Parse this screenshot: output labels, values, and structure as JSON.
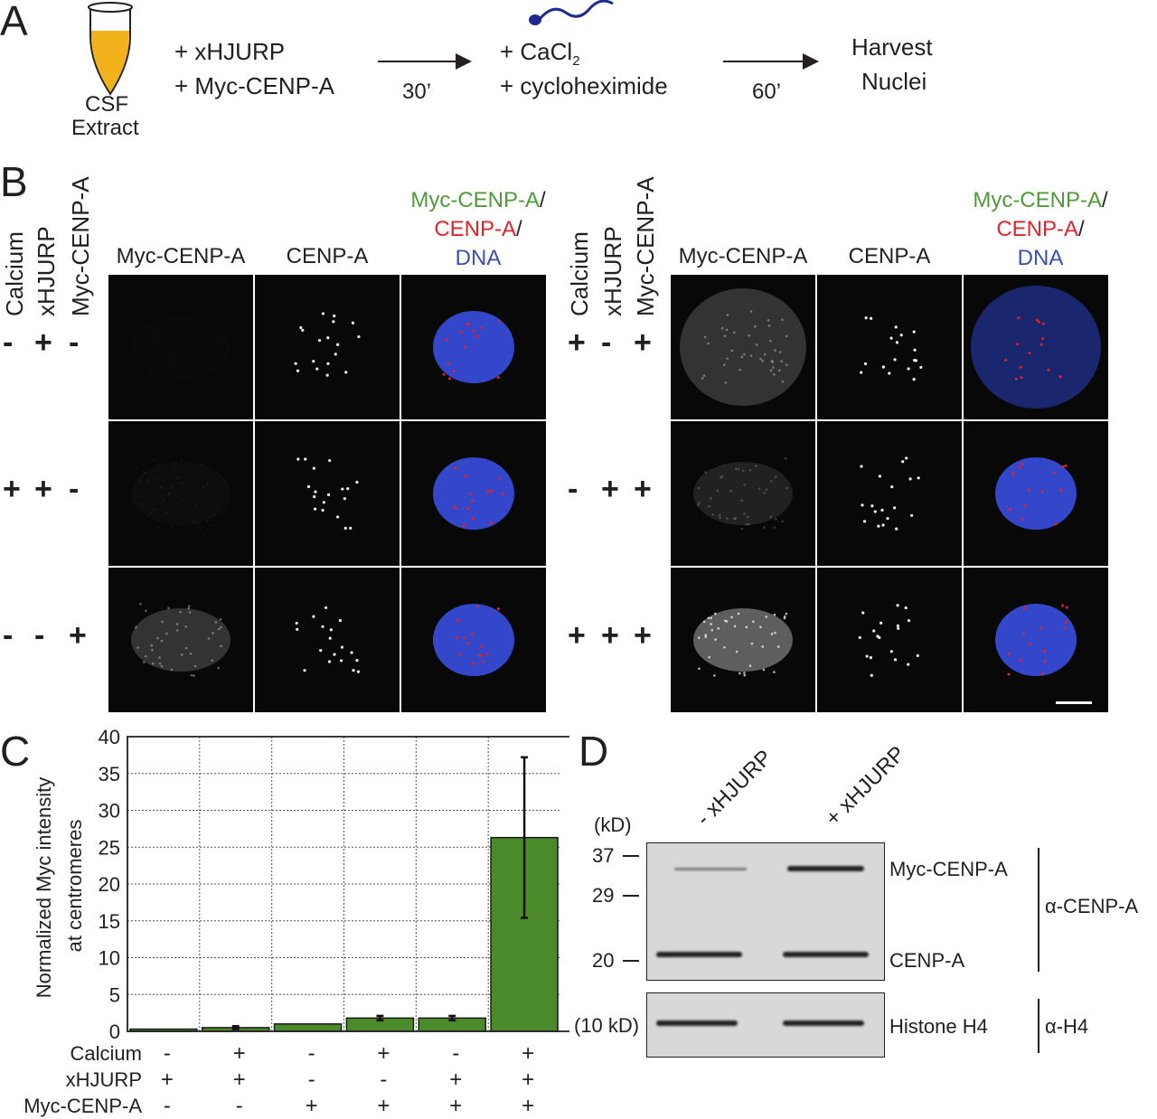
{
  "panel_letters": [
    "A",
    "B",
    "C",
    "D"
  ],
  "panel_a": {
    "tube_label": [
      "CSF",
      "Extract"
    ],
    "step1": [
      "+ xHJURP",
      "+ Myc-CENP-A"
    ],
    "time1": "30’",
    "step2_line1": "+ CaCl",
    "step2_sub": "2",
    "step2_line2": "+ cycloheximide",
    "time2": "60’",
    "result": [
      "Harvest",
      "Nuclei"
    ]
  },
  "panel_b": {
    "condition_labels": [
      "Calcium",
      "xHJURP",
      "Myc-CENP-A"
    ],
    "column_headers": [
      "Myc-CENP-A",
      "CENP-A"
    ],
    "merge_header": [
      {
        "text": "Myc-CENP-A",
        "color": "#4f9a3a"
      },
      {
        "text": "CENP-A",
        "color": "#e0242b"
      },
      {
        "text": "DNA",
        "color": "#3a4fb5"
      }
    ],
    "left_rows": [
      [
        "-",
        "+",
        "-"
      ],
      [
        "+",
        "+",
        "-"
      ],
      [
        "-",
        "-",
        "+"
      ]
    ],
    "right_rows": [
      [
        "+",
        "-",
        "+"
      ],
      [
        "-",
        "+",
        "+"
      ],
      [
        "+",
        "+",
        "+"
      ]
    ]
  },
  "panel_c": {
    "ylabel": [
      "Normalized Myc intensity",
      "at centromeres"
    ]
  },
  "chart_data": {
    "type": "bar",
    "ylabel": "Normalized Myc intensity at centromeres",
    "ylim": [
      0,
      40
    ],
    "yticks": [
      0,
      5,
      10,
      15,
      20,
      25,
      30,
      35,
      40
    ],
    "grid": true,
    "bar_color": "#4a8a2a",
    "condition_rows": [
      {
        "name": "Calcium",
        "values": [
          "-",
          "+",
          "-",
          "+",
          "-",
          "+"
        ]
      },
      {
        "name": "xHJURP",
        "values": [
          "+",
          "+",
          "-",
          "-",
          "+",
          "+"
        ]
      },
      {
        "name": "Myc-CENP-A",
        "values": [
          "-",
          "-",
          "+",
          "+",
          "+",
          "+"
        ]
      }
    ],
    "values": [
      0.3,
      0.5,
      1.0,
      1.8,
      1.8,
      26.3
    ],
    "error": [
      0,
      0.2,
      0,
      0.3,
      0.3,
      10.9
    ]
  },
  "panel_d": {
    "lanes": [
      "- xHJURP",
      "+ xHJURP"
    ],
    "unit": "(kD)",
    "markers": [
      "37",
      "29",
      "20"
    ],
    "h4_marker": "(10 kD)",
    "band_labels": [
      "Myc-CENP-A",
      "CENP-A",
      "Histone H4"
    ],
    "antibodies": [
      "α-CENP-A",
      "α-H4"
    ]
  }
}
